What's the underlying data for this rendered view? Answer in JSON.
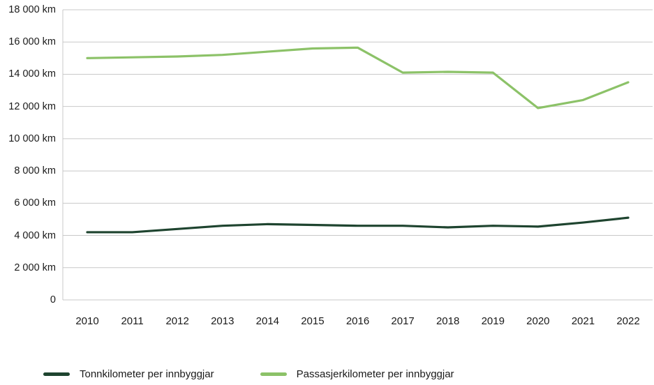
{
  "chart_data": {
    "type": "line",
    "x": [
      "2010",
      "2011",
      "2012",
      "2013",
      "2014",
      "2015",
      "2016",
      "2017",
      "2018",
      "2019",
      "2020",
      "2021",
      "2022"
    ],
    "series": [
      {
        "name": "Tonnkilometer per innbyggjar",
        "color": "#1e442f",
        "values": [
          4200,
          4200,
          4400,
          4600,
          4700,
          4650,
          4600,
          4600,
          4500,
          4600,
          4550,
          4800,
          5100
        ]
      },
      {
        "name": "Passasjerkilometer per innbyggjar",
        "color": "#8cc268",
        "values": [
          15000,
          15050,
          15100,
          15200,
          15400,
          15600,
          15650,
          14100,
          14150,
          14100,
          11900,
          12400,
          13500
        ]
      }
    ],
    "ylim": [
      0,
      18000
    ],
    "yticks": [
      {
        "value": 0,
        "label": "0"
      },
      {
        "value": 2000,
        "label": "2 000 km"
      },
      {
        "value": 4000,
        "label": "4 000 km"
      },
      {
        "value": 6000,
        "label": "6 000 km"
      },
      {
        "value": 8000,
        "label": "8 000 km"
      },
      {
        "value": 10000,
        "label": "10 000 km"
      },
      {
        "value": 12000,
        "label": "12 000 km"
      },
      {
        "value": 14000,
        "label": "14 000 km"
      },
      {
        "value": 16000,
        "label": "16 000 km"
      },
      {
        "value": 18000,
        "label": "18 000 km"
      }
    ],
    "grid": true,
    "grid_color": "#c8c8c8",
    "axis_color": "#c8c8c8",
    "text_color": "#1a1a1a",
    "legend_position": "bottom",
    "title": "",
    "xlabel": "",
    "ylabel": ""
  }
}
